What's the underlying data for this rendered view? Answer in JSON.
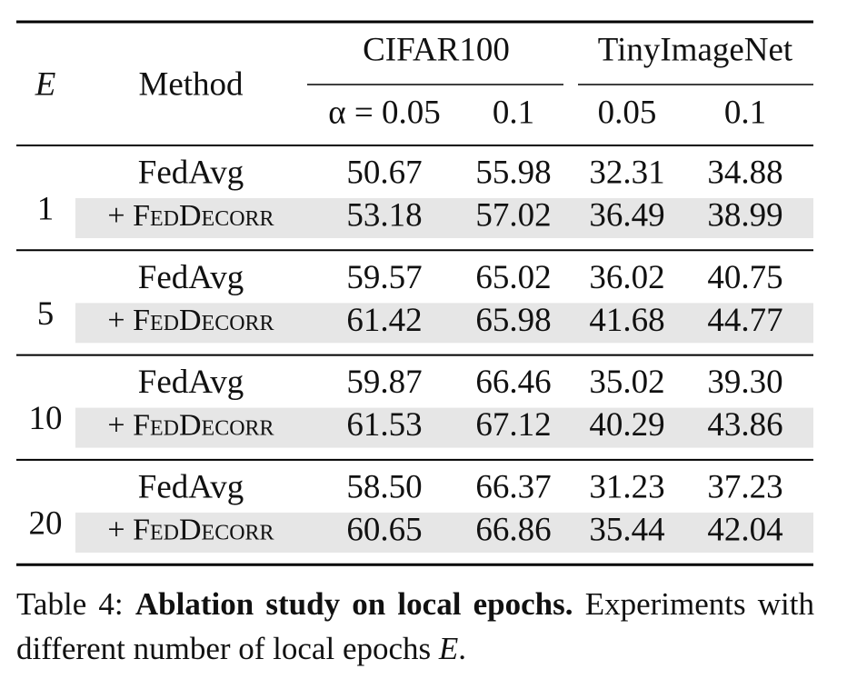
{
  "header": {
    "e": "E",
    "method": "Method",
    "dataset_1": "CIFAR100",
    "dataset_2": "TinyImageNet",
    "alphas": [
      "α = 0.05",
      "0.1",
      "0.05",
      "0.1"
    ]
  },
  "groups": [
    {
      "e": "1",
      "rows": [
        {
          "method": "FedAvg",
          "values": [
            "50.67",
            "55.98",
            "32.31",
            "34.88"
          ]
        },
        {
          "method": "+ FedDecorr",
          "values": [
            "53.18",
            "57.02",
            "36.49",
            "38.99"
          ]
        }
      ]
    },
    {
      "e": "5",
      "rows": [
        {
          "method": "FedAvg",
          "values": [
            "59.57",
            "65.02",
            "36.02",
            "40.75"
          ]
        },
        {
          "method": "+ FedDecorr",
          "values": [
            "61.42",
            "65.98",
            "41.68",
            "44.77"
          ]
        }
      ]
    },
    {
      "e": "10",
      "rows": [
        {
          "method": "FedAvg",
          "values": [
            "59.87",
            "66.46",
            "35.02",
            "39.30"
          ]
        },
        {
          "method": "+ FedDecorr",
          "values": [
            "61.53",
            "67.12",
            "40.29",
            "43.86"
          ]
        }
      ]
    },
    {
      "e": "20",
      "rows": [
        {
          "method": "FedAvg",
          "values": [
            "58.50",
            "66.37",
            "31.23",
            "37.23"
          ]
        },
        {
          "method": "+ FedDecorr",
          "values": [
            "60.65",
            "66.86",
            "35.44",
            "42.04"
          ]
        }
      ]
    }
  ],
  "caption": {
    "label": "Table 4:",
    "title": "Ablation study on local epochs.",
    "text": "Experiments with different number of local epochs ",
    "symbol": "E",
    "end": "."
  }
}
